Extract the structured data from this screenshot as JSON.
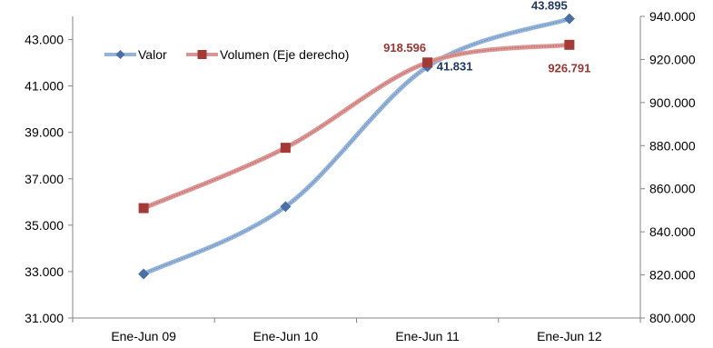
{
  "chart_data": {
    "type": "line",
    "title": "",
    "xlabel": "",
    "ylabel": "",
    "categories": [
      "Ene-Jun 09",
      "Ene-Jun 10",
      "Ene-Jun 11",
      "Ene-Jun 12"
    ],
    "y_left": {
      "min": 31000,
      "max": 44000,
      "step": 2000,
      "ticks": [
        "31.000",
        "33.000",
        "35.000",
        "37.000",
        "39.000",
        "41.000",
        "43.000"
      ]
    },
    "y_right": {
      "min": 800000,
      "max": 940000,
      "step": 20000,
      "ticks": [
        "800.000",
        "820.000",
        "840.000",
        "860.000",
        "880.000",
        "900.000",
        "920.000",
        "940.000"
      ]
    },
    "series": [
      {
        "name": "Valor",
        "axis": "left",
        "color": "#4f81bd",
        "marker_color": "#4a6fa5",
        "marker": "diamond",
        "values": [
          32900,
          35800,
          41831,
          43895
        ],
        "labels": [
          "",
          "",
          "41.831",
          "43.895"
        ],
        "label_color": "#1f3864"
      },
      {
        "name": "Volumen (Eje derecho)",
        "axis": "right",
        "color": "#c0504d",
        "marker_color": "#a33a36",
        "marker": "square",
        "values": [
          851000,
          879000,
          918596,
          926791
        ],
        "labels": [
          "",
          "",
          "918.596",
          "926.791"
        ],
        "label_color": "#953735"
      }
    ],
    "legend": "top-left",
    "grid": false
  }
}
